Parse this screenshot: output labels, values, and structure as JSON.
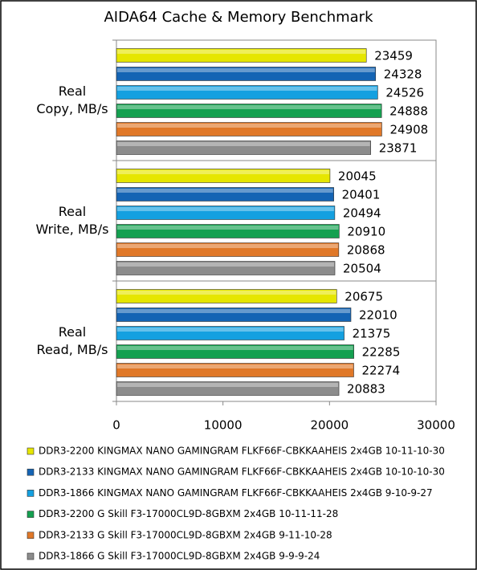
{
  "chart_data": {
    "type": "hbar",
    "title": "AIDA64 Cache & Memory Benchmark",
    "categories": [
      "Real\nCopy, MB/s",
      "Real\nWrite, MB/s",
      "Real\nRead, MB/s"
    ],
    "series": [
      {
        "name": "DDR3-2200 KINGMAX NANO GAMINGRAM FLKF66F-CBKKAAHEIS 2x4GB 10-11-10-30",
        "color": "#e6e600",
        "values": [
          23459,
          20045,
          20675
        ]
      },
      {
        "name": "DDR3-2133 KINGMAX NANO GAMINGRAM FLKF66F-CBKKAAHEIS 2x4GB 10-10-10-30",
        "color": "#1464b4",
        "values": [
          24328,
          20401,
          22010
        ]
      },
      {
        "name": "DDR3-1866 KINGMAX NANO GAMINGRAM FLKF66F-CBKKAAHEIS 2x4GB 9-10-9-27",
        "color": "#14a0e0",
        "values": [
          24526,
          20494,
          21375
        ]
      },
      {
        "name": "DDR3-2200 G Skill F3-17000CL9D-8GBXM 2x4GB 10-11-11-28",
        "color": "#14a050",
        "values": [
          24888,
          20910,
          22285
        ]
      },
      {
        "name": "DDR3-2133 G Skill F3-17000CL9D-8GBXM 2x4GB 9-11-10-28",
        "color": "#e07828",
        "values": [
          24908,
          20868,
          22274
        ]
      },
      {
        "name": "DDR3-1866 G Skill F3-17000CL9D-8GBXM 2x4GB 9-9-9-24",
        "color": "#8c8c8c",
        "values": [
          23871,
          20504,
          20883
        ]
      }
    ],
    "xlim": [
      0,
      30000
    ],
    "xticks": [
      0,
      10000,
      20000,
      30000
    ],
    "grid": false,
    "legend": "bottom"
  }
}
